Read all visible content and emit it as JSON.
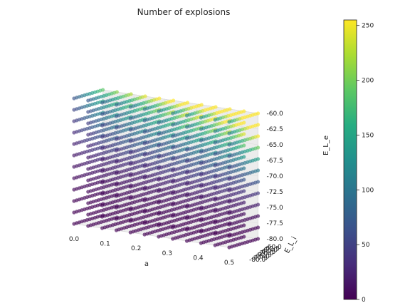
{
  "chart_data": {
    "type": "scatter",
    "projection": "3d",
    "title": "Number of explosions",
    "xlabel": "a",
    "ylabel": "E_L_i",
    "zlabel": "E_L_e",
    "xlim": [
      0.0,
      0.5
    ],
    "ylim": [
      -80.0,
      -60.0
    ],
    "zlim": [
      -80.0,
      -60.0
    ],
    "x_ticks": [
      "0.0",
      "0.1",
      "0.2",
      "0.3",
      "0.4",
      "0.5"
    ],
    "y_ticks": [
      "-80.0",
      "-77.5",
      "-75.0",
      "-72.5",
      "-70.0",
      "-67.5",
      "-65.0",
      "-62.5",
      "-60.0"
    ],
    "z_ticks": [
      "-80.0",
      "-77.5",
      "-75.0",
      "-72.5",
      "-70.0",
      "-67.5",
      "-65.0",
      "-62.5",
      "-60.0"
    ],
    "grid": {
      "x_values": [
        0.0,
        0.0476,
        0.0952,
        0.1429,
        0.1905,
        0.2381,
        0.2857,
        0.3333,
        0.381,
        0.4286,
        0.4762,
        0.5
      ],
      "y_values": [
        -80.0,
        -78.18,
        -76.36,
        -74.55,
        -72.73,
        -70.91,
        -69.09,
        -67.27,
        -65.45,
        -63.64,
        -61.82,
        -60.0
      ],
      "z_values": [
        -80.0,
        -78.18,
        -76.36,
        -74.55,
        -72.73,
        -70.91,
        -69.09,
        -67.27,
        -65.45,
        -63.64,
        -61.82,
        -60.0
      ]
    },
    "color_variable": "number of explosions",
    "colorbar": {
      "min": 0,
      "max": 255,
      "ticks": [
        "0",
        "50",
        "100",
        "150",
        "200",
        "250"
      ],
      "colormap": "viridis"
    },
    "marker_alpha": 0.65,
    "grid_visible": true
  }
}
